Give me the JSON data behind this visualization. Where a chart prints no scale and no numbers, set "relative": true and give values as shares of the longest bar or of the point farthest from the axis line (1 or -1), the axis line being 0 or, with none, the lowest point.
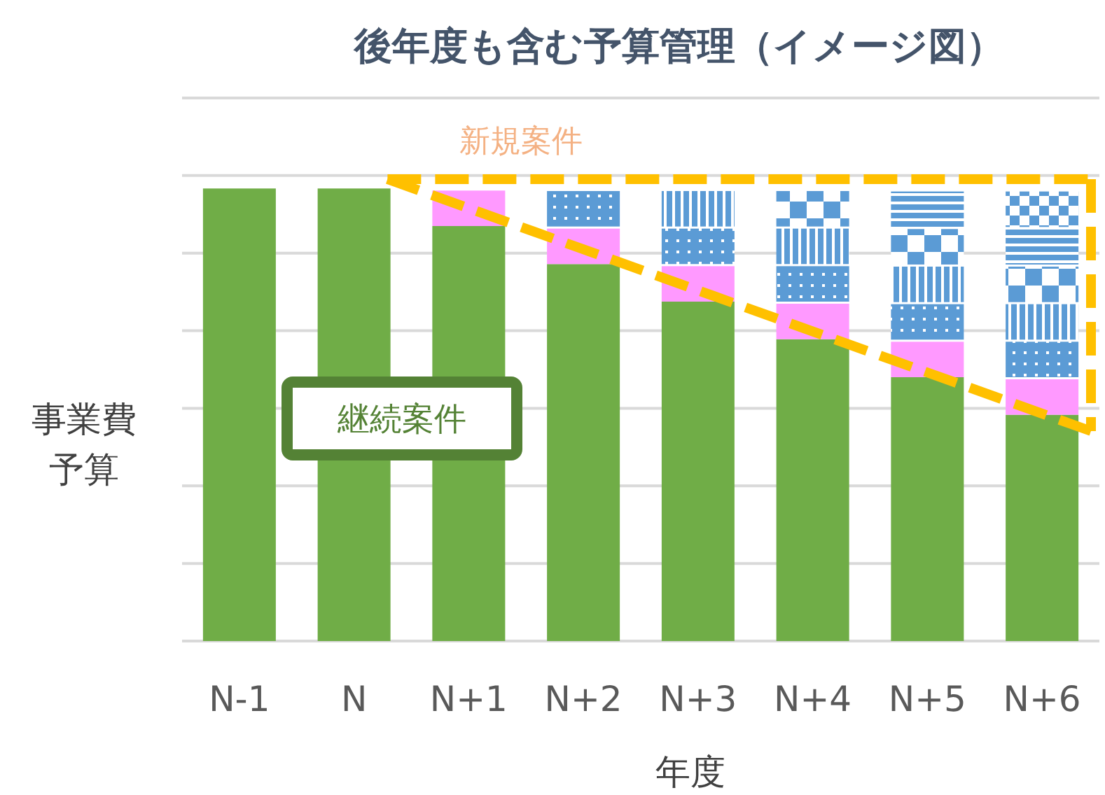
{
  "chart_data": {
    "type": "bar",
    "title": "後年度も含む予算管理（イメージ図）",
    "xlabel": "年度",
    "ylabel": "事業費予算",
    "annotations": [
      "新規案件",
      "継続案件"
    ],
    "categories": [
      "N-1",
      "N",
      "N+1",
      "N+2",
      "N+3",
      "N+4",
      "N+5",
      "N+6"
    ],
    "stacked": true,
    "relative": true,
    "grid": "y",
    "series": [
      {
        "color": "#70ad47",
        "values": [
          1,
          1,
          0.917,
          0.833,
          0.75,
          0.667,
          0.583,
          0.5
        ]
      },
      {
        "color": "#ff99ff",
        "values": [
          null,
          null,
          0.083,
          0.083,
          0.083,
          0.083,
          0.083,
          0.083
        ]
      },
      {
        "color": "#5b9bd5",
        "values": [
          null,
          null,
          null,
          0.083,
          0.083,
          0.083,
          0.083,
          0.083
        ]
      },
      {
        "color": "#5b9bd5",
        "values": [
          null,
          null,
          null,
          null,
          0.083,
          0.083,
          0.083,
          0.083
        ]
      },
      {
        "color": "#5b9bd5",
        "values": [
          null,
          null,
          null,
          null,
          null,
          0.083,
          0.083,
          0.083
        ]
      },
      {
        "color": "#5b9bd5",
        "values": [
          null,
          null,
          null,
          null,
          null,
          null,
          0.083,
          0.083
        ]
      },
      {
        "color": "#5b9bd5",
        "values": [
          null,
          null,
          null,
          null,
          null,
          null,
          null,
          0.083
        ]
      }
    ]
  }
}
